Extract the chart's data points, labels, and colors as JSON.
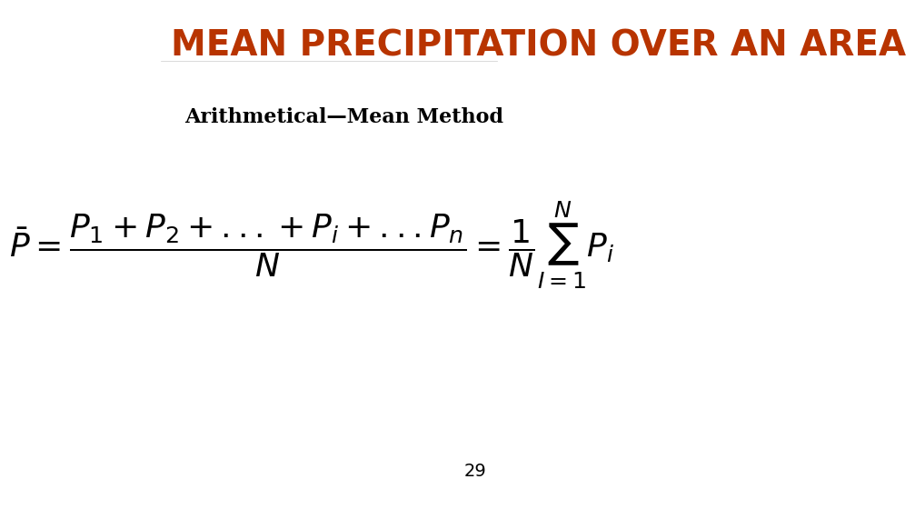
{
  "title": "MEAN PRECIPITATION OVER AN AREA",
  "title_color": "#b83400",
  "title_fontsize": 28,
  "subtitle": "Arithmetical—Mean Method",
  "subtitle_fontsize": 16,
  "formula": "$\\bar{P} = \\dfrac{P_1 + P_2 + ...+ P_i + ...P_n}{N} = \\dfrac{1}{N}\\sum_{I=1}^{N} P_i$",
  "formula_fontsize": 26,
  "page_number": "29",
  "page_number_fontsize": 14,
  "background_color": "#ffffff"
}
